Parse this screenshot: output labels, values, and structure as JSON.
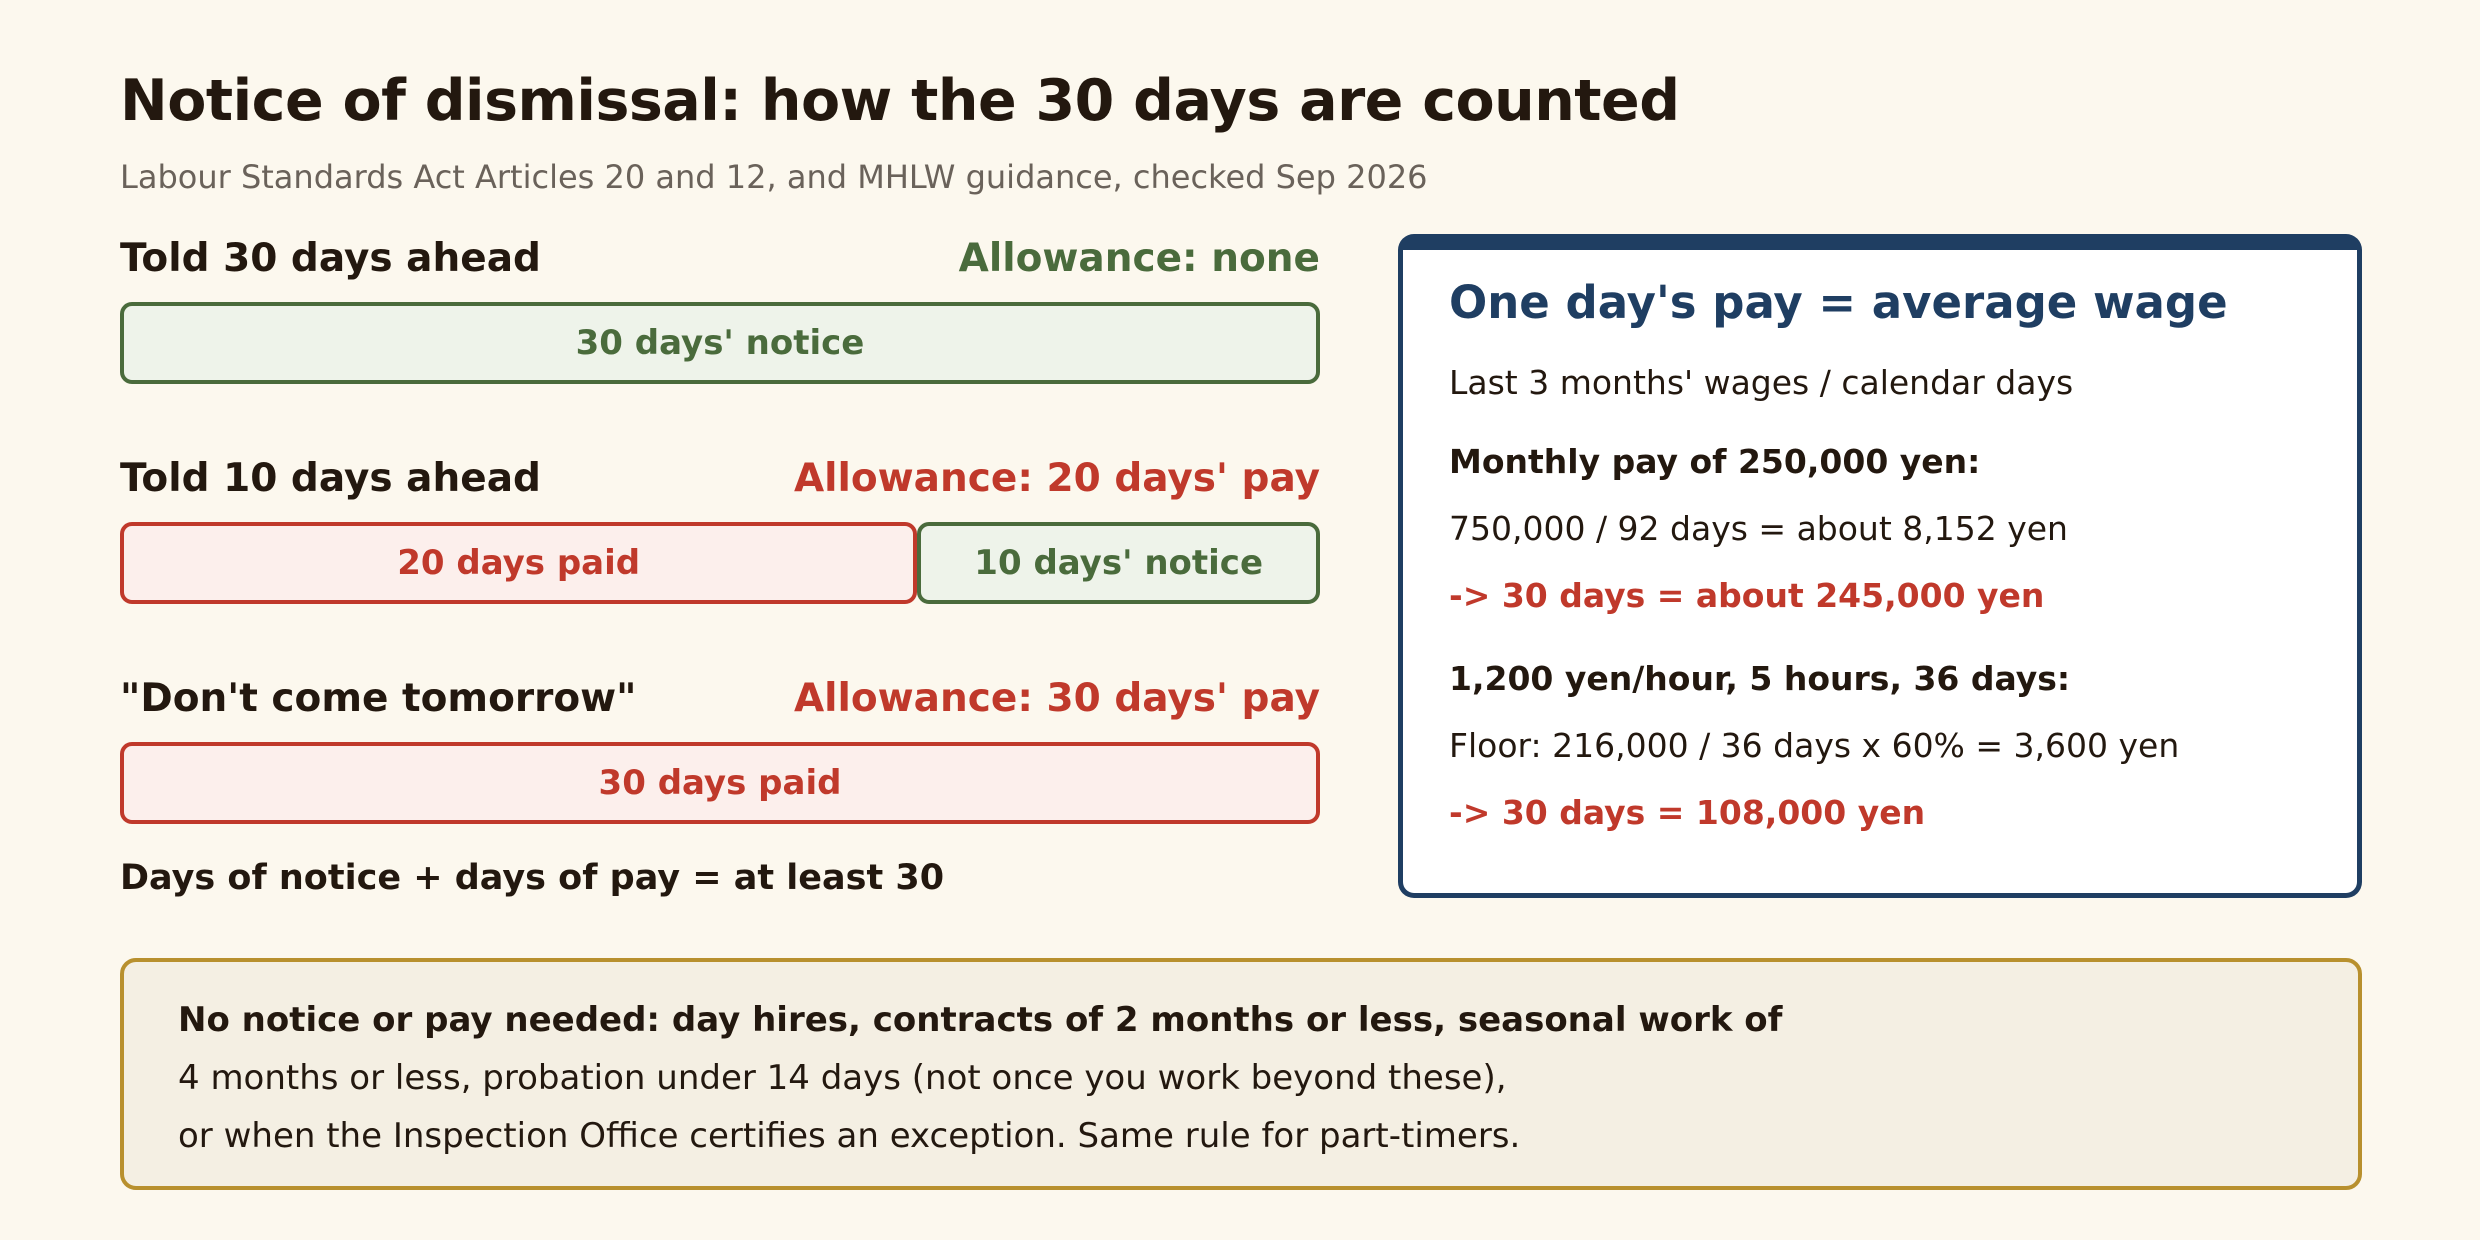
{
  "header": {
    "title": "Notice of dismissal: how the 30 days are counted",
    "subtitle": "Labour Standards Act Articles 20 and 12, and MHLW guidance, checked Sep 2026"
  },
  "scenarios": [
    {
      "label": "Told 30 days ahead",
      "allowance": "Allowance: none",
      "segments": [
        {
          "type": "notice",
          "label": "30 days' notice",
          "days": 30
        }
      ]
    },
    {
      "label": "Told 10 days ahead",
      "allowance": "Allowance: 20 days' pay",
      "segments": [
        {
          "type": "paid",
          "label": "20 days paid",
          "days": 20
        },
        {
          "type": "notice",
          "label": "10 days' notice",
          "days": 10
        }
      ]
    },
    {
      "label": "\"Don't come tomorrow\"",
      "allowance": "Allowance: 30 days' pay",
      "segments": [
        {
          "type": "paid",
          "label": "30 days paid",
          "days": 30
        }
      ]
    }
  ],
  "rule": "Days of notice + days of pay = at least 30",
  "card": {
    "title": "One day's pay = average wage",
    "definition": "Last 3 months' wages / calendar days",
    "example1": {
      "heading": "Monthly pay of 250,000 yen:",
      "calc": "750,000 / 92 days = about 8,152 yen",
      "result": "-> 30 days = about 245,000 yen"
    },
    "example2": {
      "heading": "1,200 yen/hour, 5 hours, 36 days:",
      "calc": "Floor: 216,000 / 36 days x 60% = 3,600 yen",
      "result": "-> 30 days = 108,000 yen"
    }
  },
  "note": {
    "line1": "No notice or pay needed: day hires, contracts of 2 months or less, seasonal work of",
    "line2": "4 months or less, probation under 14 days (not once you work beyond these),",
    "line3": "or when the Inspection Office certifies an exception. Same rule for part-timers."
  },
  "colors": {
    "notice": "#4a6b3c",
    "paid": "#c0392b",
    "card_accent": "#1f3e62",
    "note_border": "#b8902e"
  }
}
